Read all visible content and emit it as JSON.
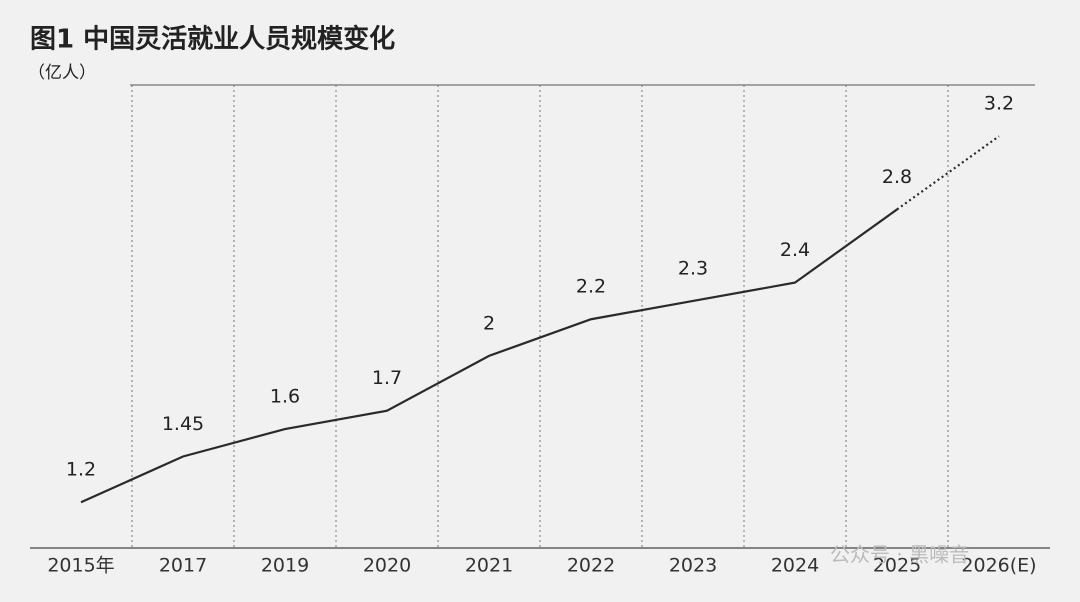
{
  "chart_data": {
    "type": "line",
    "title": "图1 中国灵活就业人员规模变化",
    "subtitle": "（亿人）",
    "categories": [
      "2015年",
      "2017",
      "2019",
      "2020",
      "2021",
      "2022",
      "2023",
      "2024",
      "2025",
      "2026(E)"
    ],
    "values": [
      1.2,
      1.45,
      1.6,
      1.7,
      2,
      2.2,
      2.3,
      2.4,
      2.8,
      3.2
    ],
    "color": "#2a2a2a",
    "ylim": [
      0.95,
      3.48
    ],
    "projected_from_index": 8,
    "watermark": "公众号 · 黑噪音"
  }
}
